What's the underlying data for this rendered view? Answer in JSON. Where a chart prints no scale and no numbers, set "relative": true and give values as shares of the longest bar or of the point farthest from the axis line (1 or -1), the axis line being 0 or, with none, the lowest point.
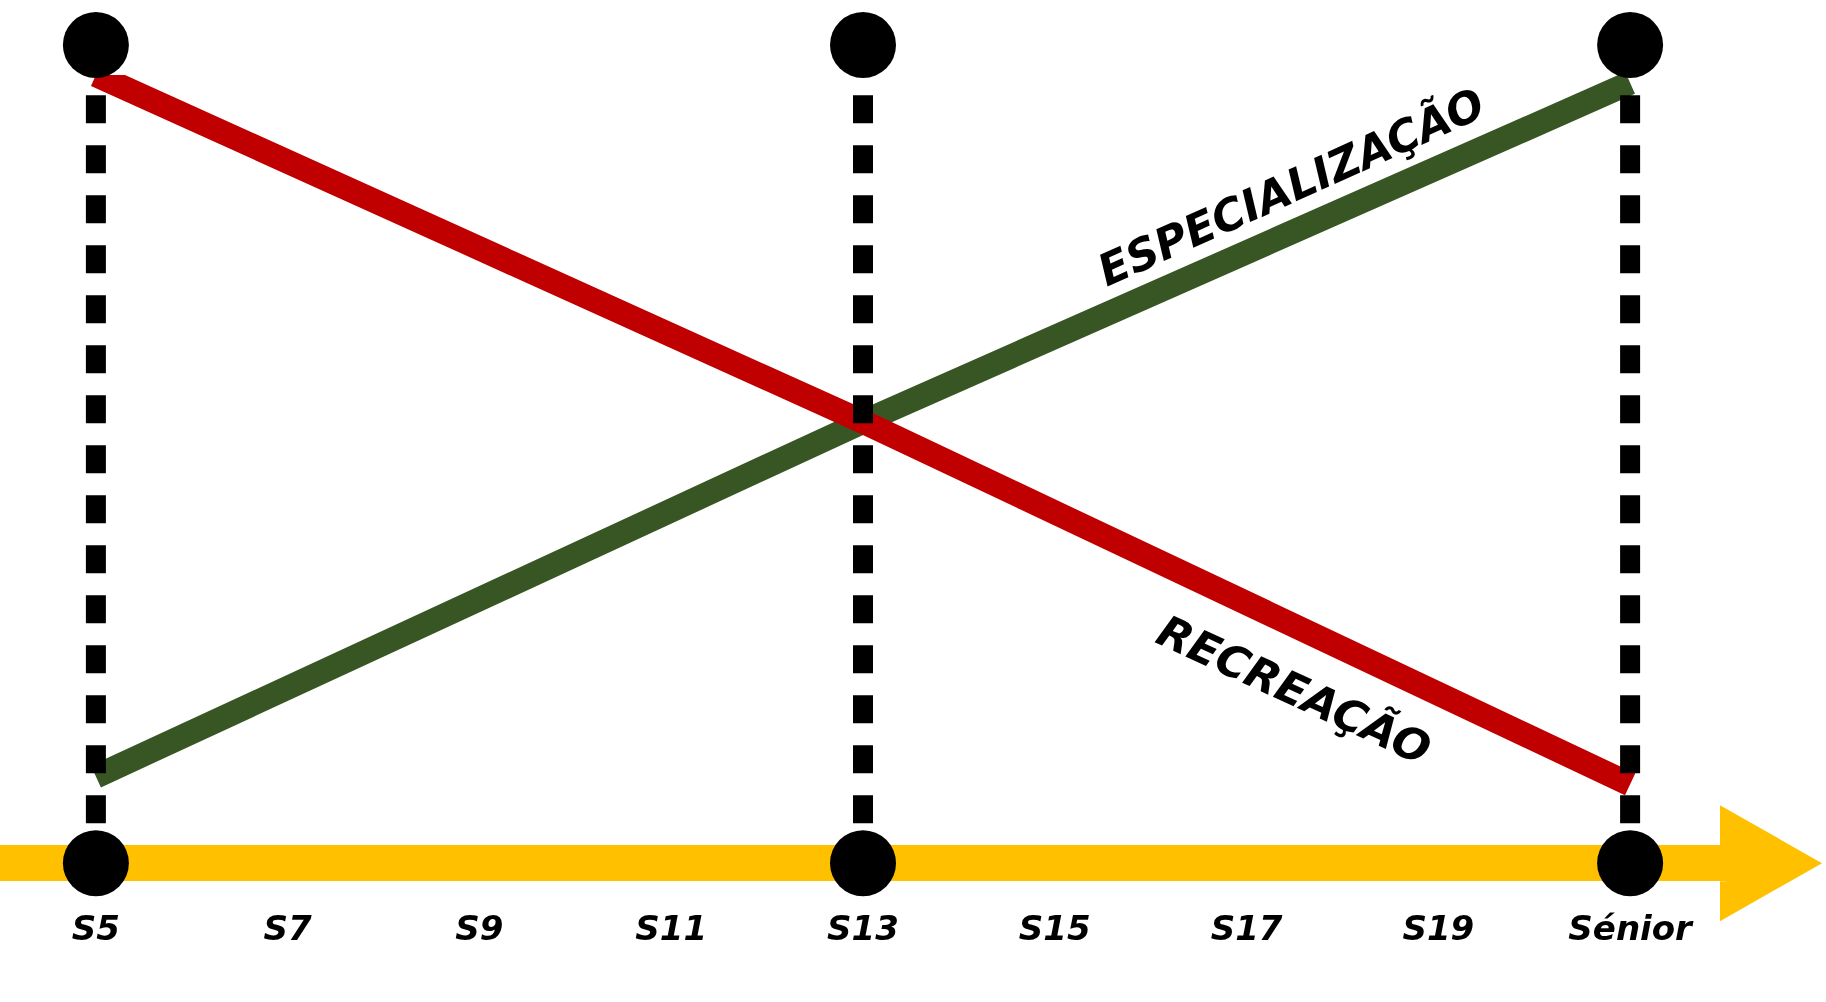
{
  "chart_data": {
    "type": "line",
    "relative": true,
    "categories": [
      "S5",
      "S7",
      "S9",
      "S11",
      "S13",
      "S15",
      "S17",
      "S19",
      "Sénior"
    ],
    "series": [
      {
        "name": "RECREAÇÃO",
        "color": "#c00000",
        "values": [
          1,
          null,
          null,
          null,
          0.56,
          null,
          null,
          null,
          0.1
        ]
      },
      {
        "name": "ESPECIALIZAÇÃO",
        "color": "#375623",
        "values": [
          0.11,
          null,
          null,
          null,
          0.56,
          null,
          null,
          null,
          0.99
        ]
      }
    ],
    "ref_lines": [
      {
        "axis": "x",
        "value": "S5",
        "color": "#000000",
        "line_style": "dashed"
      },
      {
        "axis": "x",
        "value": "S13",
        "color": "#000000",
        "line_style": "dashed"
      },
      {
        "axis": "x",
        "value": "Sénior",
        "color": "#000000",
        "line_style": "dashed"
      }
    ],
    "legend": false,
    "grid": false,
    "tick_labels": "x",
    "marker": "none"
  }
}
